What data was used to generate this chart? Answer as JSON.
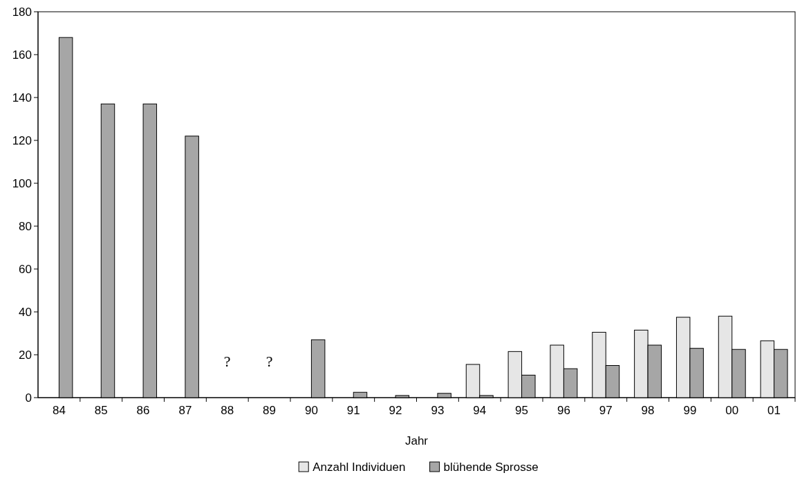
{
  "chart_data": {
    "type": "bar",
    "xlabel": "Jahr",
    "categories": [
      "84",
      "85",
      "86",
      "87",
      "88",
      "89",
      "90",
      "91",
      "92",
      "93",
      "94",
      "95",
      "96",
      "97",
      "98",
      "99",
      "00",
      "01"
    ],
    "series": [
      {
        "name": "Anzahl Individuen",
        "color": "#e6e6e6",
        "values": [
          null,
          null,
          null,
          null,
          null,
          null,
          null,
          null,
          null,
          null,
          15.5,
          21.5,
          24.5,
          30.5,
          31.5,
          37.5,
          38,
          26.5
        ]
      },
      {
        "name": "blühende Sprosse",
        "color": "#a6a6a6",
        "values": [
          168,
          137,
          137,
          122,
          null,
          null,
          27,
          2.5,
          1,
          2,
          1,
          10.5,
          13.5,
          15,
          24.5,
          23,
          22.5,
          22.5
        ]
      }
    ],
    "ylim": [
      0,
      180
    ],
    "yticks": [
      0,
      20,
      40,
      60,
      80,
      100,
      120,
      140,
      160,
      180
    ],
    "annotations": [
      "?",
      "?"
    ],
    "grid": false,
    "legend": "bottom"
  }
}
